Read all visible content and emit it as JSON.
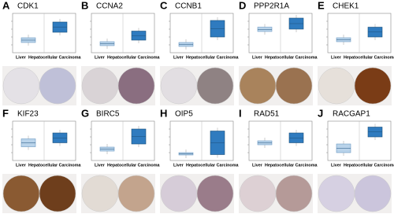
{
  "panels": [
    {
      "letter": "A",
      "gene": "CDK1"
    },
    {
      "letter": "B",
      "gene": "CCNA2"
    },
    {
      "letter": "C",
      "gene": "CCNB1"
    },
    {
      "letter": "D",
      "gene": "PPP2R1A"
    },
    {
      "letter": "E",
      "gene": "CHEK1"
    },
    {
      "letter": "F",
      "gene": "KIF23"
    },
    {
      "letter": "G",
      "gene": "BIRC5"
    },
    {
      "letter": "H",
      "gene": "OIP5"
    },
    {
      "letter": "I",
      "gene": "RAD51"
    },
    {
      "letter": "J",
      "gene": "RACGAP1"
    }
  ],
  "labels": {
    "normal": "Liver",
    "tumor": "Hepatocellular Carcinoma"
  }
}
